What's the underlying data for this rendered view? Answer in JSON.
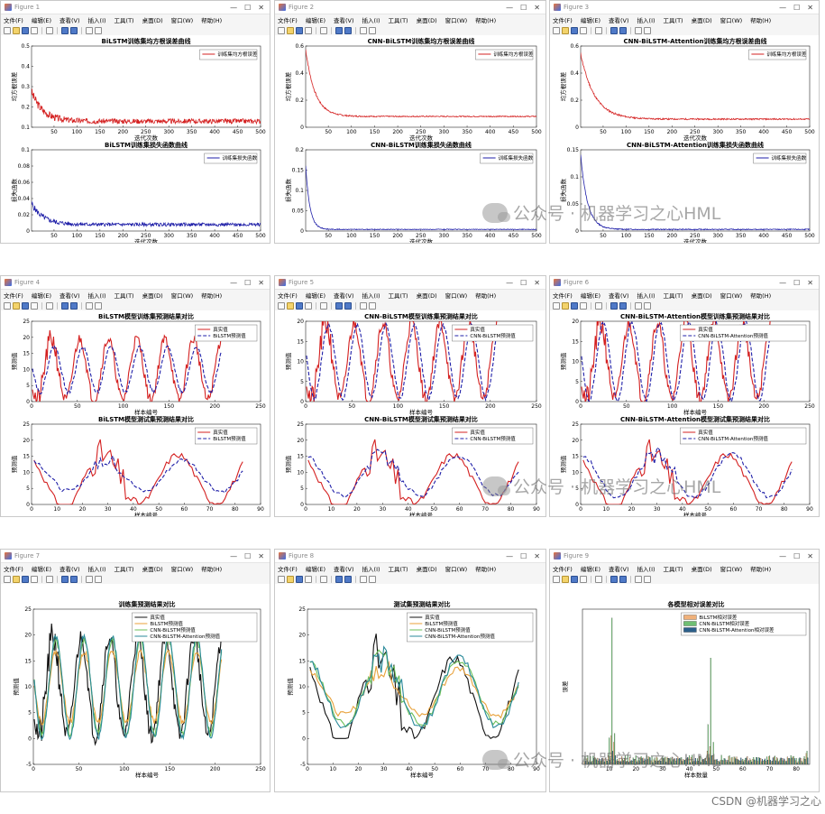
{
  "menu": [
    "文件(F)",
    "编辑(E)",
    "查看(V)",
    "插入(I)",
    "工具(T)",
    "桌面(D)",
    "窗口(W)",
    "帮助(H)"
  ],
  "window_buttons": [
    "—",
    "☐",
    "✕"
  ],
  "figures": [
    {
      "title": "Figure 1",
      "plots": [
        {
          "type": "line",
          "title": "BiLSTM训练集均方根误差曲线",
          "xlabel": "迭代次数",
          "ylabel": "均方根误差",
          "xlim": [
            1,
            500
          ],
          "ylim": [
            0.1,
            0.5
          ],
          "xticks": [
            50,
            100,
            150,
            200,
            250,
            300,
            350,
            400,
            450,
            500
          ],
          "yticks": [
            0.1,
            0.2,
            0.3,
            0.4,
            0.5
          ],
          "series": [
            {
              "name": "训练集均方根误差",
              "color": "#d42020",
              "kind": "rmse",
              "start": 0.28,
              "floor": 0.13,
              "tau": 25,
              "noise": 0.012,
              "seed": 3
            }
          ]
        },
        {
          "type": "line",
          "title": "BiLSTM训练集损失函数曲线",
          "xlabel": "迭代次数",
          "ylabel": "损失函数",
          "xlim": [
            1,
            500
          ],
          "ylim": [
            0,
            0.1
          ],
          "xticks": [
            50,
            100,
            150,
            200,
            250,
            300,
            350,
            400,
            450,
            500
          ],
          "yticks": [
            0,
            0.02,
            0.04,
            0.06,
            0.08,
            0.1
          ],
          "series": [
            {
              "name": "训练集损失函数",
              "color": "#1f1fa8",
              "kind": "rmse",
              "start": 0.035,
              "floor": 0.008,
              "tau": 25,
              "noise": 0.002,
              "seed": 5
            }
          ]
        }
      ]
    },
    {
      "title": "Figure 2",
      "plots": [
        {
          "type": "line",
          "title": "CNN-BiLSTM训练集均方根误差曲线",
          "xlabel": "迭代次数",
          "ylabel": "均方根误差",
          "xlim": [
            1,
            500
          ],
          "ylim": [
            0,
            0.6
          ],
          "xticks": [
            50,
            100,
            150,
            200,
            250,
            300,
            350,
            400,
            450,
            500
          ],
          "yticks": [
            0,
            0.2,
            0.4,
            0.6
          ],
          "series": [
            {
              "name": "训练集均方根误差",
              "color": "#d42020",
              "kind": "rmse",
              "start": 0.6,
              "floor": 0.08,
              "tau": 20,
              "noise": 0.004,
              "seed": 7
            }
          ]
        },
        {
          "type": "line",
          "title": "CNN-BiLSTM训练集损失函数曲线",
          "xlabel": "迭代次数",
          "ylabel": "损失函数",
          "xlim": [
            1,
            500
          ],
          "ylim": [
            0,
            0.2
          ],
          "xticks": [
            50,
            100,
            150,
            200,
            250,
            300,
            350,
            400,
            450,
            500
          ],
          "yticks": [
            0,
            0.05,
            0.1,
            0.15,
            0.2
          ],
          "series": [
            {
              "name": "训练集损失函数",
              "color": "#1f1fa8",
              "kind": "rmse",
              "start": 0.18,
              "floor": 0.004,
              "tau": 9,
              "noise": 0.0008,
              "seed": 9
            }
          ]
        }
      ]
    },
    {
      "title": "Figure 3",
      "plots": [
        {
          "type": "line",
          "title": "CNN-BiLSTM-Attention训练集均方根误差曲线",
          "xlabel": "迭代次数",
          "ylabel": "均方根误差",
          "xlim": [
            1,
            500
          ],
          "ylim": [
            0,
            0.6
          ],
          "xticks": [
            50,
            100,
            150,
            200,
            250,
            300,
            350,
            400,
            450,
            500
          ],
          "yticks": [
            0,
            0.2,
            0.4,
            0.6
          ],
          "series": [
            {
              "name": "训练集均方根误差",
              "color": "#d42020",
              "kind": "rmse",
              "start": 0.56,
              "floor": 0.06,
              "tau": 30,
              "noise": 0.005,
              "seed": 11
            }
          ]
        },
        {
          "type": "line",
          "title": "CNN-BiLSTM-Attention训练集损失函数曲线",
          "xlabel": "迭代次数",
          "ylabel": "损失函数",
          "xlim": [
            1,
            500
          ],
          "ylim": [
            0,
            0.15
          ],
          "xticks": [
            50,
            100,
            150,
            200,
            250,
            300,
            350,
            400,
            450,
            500
          ],
          "yticks": [
            0,
            0.05,
            0.1,
            0.15
          ],
          "series": [
            {
              "name": "训练集损失函数",
              "color": "#1f1fa8",
              "kind": "rmse",
              "start": 0.15,
              "floor": 0.003,
              "tau": 15,
              "noise": 0.0008,
              "seed": 13
            }
          ]
        }
      ]
    },
    {
      "title": "Figure 4",
      "plots": [
        {
          "type": "line",
          "title": "BiLSTM模型训练集预测结果对比",
          "xlabel": "样本编号",
          "ylabel": "预测值",
          "xlim": [
            0,
            250
          ],
          "ylim": [
            0,
            25
          ],
          "xticks": [
            0,
            50,
            100,
            150,
            200,
            250
          ],
          "yticks": [
            0,
            5,
            10,
            15,
            20,
            25
          ],
          "series": [
            {
              "name": "真实值",
              "color": "#d42020",
              "kind": "train_true",
              "seed": 21
            },
            {
              "name": "BiLSTM预测值",
              "color": "#1f1fa8",
              "dash": "4,2",
              "kind": "train_pred",
              "amp": 0.75,
              "seed": 22
            }
          ]
        },
        {
          "type": "line",
          "title": "BiLSTM模型测试集预测结果对比",
          "xlabel": "样本编号",
          "ylabel": "预测值",
          "xlim": [
            0,
            90
          ],
          "ylim": [
            0,
            25
          ],
          "xticks": [
            0,
            10,
            20,
            30,
            40,
            50,
            60,
            70,
            80,
            90
          ],
          "yticks": [
            0,
            5,
            10,
            15,
            20,
            25
          ],
          "series": [
            {
              "name": "真实值",
              "color": "#d42020",
              "kind": "test_true",
              "seed": 31
            },
            {
              "name": "BiLSTM预测值",
              "color": "#1f1fa8",
              "dash": "4,2",
              "kind": "test_pred",
              "amp": 0.7,
              "seed": 32
            }
          ]
        }
      ]
    },
    {
      "title": "Figure 5",
      "plots": [
        {
          "type": "line",
          "title": "CNN-BiLSTM模型训练集预测结果对比",
          "xlabel": "样本编号",
          "ylabel": "预测值",
          "xlim": [
            0,
            250
          ],
          "ylim": [
            0,
            20
          ],
          "xticks": [
            0,
            50,
            100,
            150,
            200,
            250
          ],
          "yticks": [
            0,
            5,
            10,
            15,
            20
          ],
          "series": [
            {
              "name": "真实值",
              "color": "#d42020",
              "kind": "train_true",
              "seed": 21
            },
            {
              "name": "CNN-BiLSTM预测值",
              "color": "#1f1fa8",
              "dash": "4,2",
              "kind": "train_pred",
              "amp": 0.95,
              "seed": 23
            }
          ]
        },
        {
          "type": "line",
          "title": "CNN-BiLSTM模型测试集预测结果对比",
          "xlabel": "样本编号",
          "ylabel": "预测值",
          "xlim": [
            0,
            90
          ],
          "ylim": [
            0,
            25
          ],
          "xticks": [
            0,
            10,
            20,
            30,
            40,
            50,
            60,
            70,
            80,
            90
          ],
          "yticks": [
            0,
            5,
            10,
            15,
            20,
            25
          ],
          "series": [
            {
              "name": "真实值",
              "color": "#d42020",
              "kind": "test_true",
              "seed": 31
            },
            {
              "name": "CNN-BiLSTM预测值",
              "color": "#1f1fa8",
              "dash": "4,2",
              "kind": "test_pred",
              "amp": 0.9,
              "seed": 33
            }
          ]
        }
      ]
    },
    {
      "title": "Figure 6",
      "plots": [
        {
          "type": "line",
          "title": "CNN-BiLSTM-Attention模型训练集预测结果对比",
          "xlabel": "样本编号",
          "ylabel": "预测值",
          "xlim": [
            0,
            250
          ],
          "ylim": [
            0,
            20
          ],
          "xticks": [
            0,
            50,
            100,
            150,
            200,
            250
          ],
          "yticks": [
            0,
            5,
            10,
            15,
            20
          ],
          "series": [
            {
              "name": "真实值",
              "color": "#d42020",
              "kind": "train_true",
              "seed": 21
            },
            {
              "name": "CNN-BiLSTM-Attention预测值",
              "color": "#1f1fa8",
              "dash": "4,2",
              "kind": "train_pred",
              "amp": 1.0,
              "seed": 24
            }
          ]
        },
        {
          "type": "line",
          "title": "CNN-BiLSTM-Attention模型测试集预测结果对比",
          "xlabel": "样本编号",
          "ylabel": "预测值",
          "xlim": [
            0,
            90
          ],
          "ylim": [
            0,
            25
          ],
          "xticks": [
            0,
            10,
            20,
            30,
            40,
            50,
            60,
            70,
            80,
            90
          ],
          "yticks": [
            0,
            5,
            10,
            15,
            20,
            25
          ],
          "series": [
            {
              "name": "真实值",
              "color": "#d42020",
              "kind": "test_true",
              "seed": 31
            },
            {
              "name": "CNN-BiLSTM-Attention预测值",
              "color": "#1f1fa8",
              "dash": "4,2",
              "kind": "test_pred",
              "amp": 0.95,
              "seed": 34
            }
          ]
        }
      ]
    },
    {
      "title": "Figure 7",
      "plots": [
        {
          "type": "line",
          "title": "训练集预测结果对比",
          "xlabel": "样本编号",
          "ylabel": "预测值",
          "xlim": [
            0,
            250
          ],
          "ylim": [
            -5,
            25
          ],
          "xticks": [
            0,
            50,
            100,
            150,
            200,
            250
          ],
          "yticks": [
            -5,
            0,
            5,
            10,
            15,
            20,
            25
          ],
          "series": [
            {
              "name": "真实值",
              "color": "#111111",
              "kind": "train_true",
              "seed": 21
            },
            {
              "name": "BiLSTM预测值",
              "color": "#e8a13a",
              "kind": "train_pred",
              "amp": 0.72,
              "seed": 22
            },
            {
              "name": "CNN-BiLSTM预测值",
              "color": "#6bbf59",
              "kind": "train_pred",
              "amp": 0.95,
              "seed": 23
            },
            {
              "name": "CNN-BiLSTM-Attention预测值",
              "color": "#2a8a9a",
              "kind": "train_pred",
              "amp": 1.02,
              "seed": 24
            }
          ]
        }
      ]
    },
    {
      "title": "Figure 8",
      "plots": [
        {
          "type": "line",
          "title": "测试集预测结果对比",
          "xlabel": "样本编号",
          "ylabel": "预测值",
          "xlim": [
            0,
            90
          ],
          "ylim": [
            -5,
            25
          ],
          "xticks": [
            0,
            10,
            20,
            30,
            40,
            50,
            60,
            70,
            80,
            90
          ],
          "yticks": [
            -5,
            0,
            5,
            10,
            15,
            20,
            25
          ],
          "series": [
            {
              "name": "真实值",
              "color": "#111111",
              "kind": "test_true",
              "seed": 31
            },
            {
              "name": "BiLSTM预测值",
              "color": "#e8a13a",
              "kind": "test_pred",
              "amp": 0.65,
              "seed": 32
            },
            {
              "name": "CNN-BiLSTM预测值",
              "color": "#6bbf59",
              "kind": "test_pred",
              "amp": 0.9,
              "seed": 33
            },
            {
              "name": "CNN-BiLSTM-Attention预测值",
              "color": "#2a8a9a",
              "kind": "test_pred",
              "amp": 0.95,
              "seed": 34
            }
          ]
        }
      ]
    },
    {
      "title": "Figure 9",
      "plots": [
        {
          "type": "bar",
          "title": "各模型相对误差对比",
          "xlabel": "样本数量",
          "ylabel": "误差",
          "xlim": [
            0,
            85
          ],
          "ylim": [
            0,
            35
          ],
          "xticks": [
            10,
            20,
            30,
            40,
            50,
            60,
            70,
            80
          ],
          "yticks": [],
          "series": [
            {
              "name": "BiLSTM相对误差",
              "color": "#f0b17a"
            },
            {
              "name": "CNN-BiLSTM相对误差",
              "color": "#6fbf73"
            },
            {
              "name": "CNN-BiLSTM-Attention相对误差",
              "color": "#2b5f8a"
            }
          ],
          "spikes": [
            {
              "x": 11,
              "v": [
                6.5,
                33,
                3
              ]
            },
            {
              "x": 12,
              "v": [
                5,
                7,
                2
              ]
            },
            {
              "x": 10,
              "v": [
                2,
                6,
                1
              ]
            },
            {
              "x": 48,
              "v": [
                4,
                24,
                2
              ]
            },
            {
              "x": 47,
              "v": [
                3,
                9,
                1.5
              ]
            },
            {
              "x": 49,
              "v": [
                2,
                5,
                1
              ]
            },
            {
              "x": 84,
              "v": [
                2.5,
                3,
                1.5
              ]
            }
          ]
        }
      ]
    }
  ],
  "chart_data": [
    {
      "type": "line",
      "title": "BiLSTM训练集均方根误差曲线",
      "x_range": [
        1,
        500
      ],
      "ylim": [
        0.1,
        0.5
      ],
      "series": [
        {
          "name": "训练集均方根误差",
          "start": 0.28,
          "end": 0.13
        }
      ]
    },
    {
      "type": "line",
      "title": "BiLSTM训练集损失函数曲线",
      "x_range": [
        1,
        500
      ],
      "ylim": [
        0,
        0.1
      ],
      "series": [
        {
          "name": "训练集损失函数",
          "start": 0.035,
          "end": 0.008
        }
      ]
    },
    {
      "type": "line",
      "title": "CNN-BiLSTM训练集均方根误差曲线",
      "x_range": [
        1,
        500
      ],
      "ylim": [
        0,
        0.6
      ],
      "series": [
        {
          "name": "训练集均方根误差",
          "start": 0.6,
          "end": 0.08
        }
      ]
    },
    {
      "type": "line",
      "title": "CNN-BiLSTM训练集损失函数曲线",
      "x_range": [
        1,
        500
      ],
      "ylim": [
        0,
        0.2
      ],
      "series": [
        {
          "name": "训练集损失函数",
          "start": 0.18,
          "end": 0.004
        }
      ]
    },
    {
      "type": "line",
      "title": "CNN-BiLSTM-Attention训练集均方根误差曲线",
      "x_range": [
        1,
        500
      ],
      "ylim": [
        0,
        0.6
      ],
      "series": [
        {
          "name": "训练集均方根误差",
          "start": 0.56,
          "end": 0.06
        }
      ]
    },
    {
      "type": "line",
      "title": "CNN-BiLSTM-Attention训练集损失函数曲线",
      "x_range": [
        1,
        500
      ],
      "ylim": [
        0,
        0.15
      ],
      "series": [
        {
          "name": "训练集损失函数",
          "start": 0.15,
          "end": 0.003
        }
      ]
    },
    {
      "type": "line",
      "title": "训练集预测结果对比",
      "samples": 207,
      "ylim": [
        -5,
        25
      ],
      "note_values_range": [
        0,
        21
      ],
      "series": [
        "真实值",
        "BiLSTM预测值",
        "CNN-BiLSTM预测值",
        "CNN-BiLSTM-Attention预测值"
      ]
    },
    {
      "type": "line",
      "title": "测试集预测结果对比",
      "samples": 83,
      "ylim": [
        -5,
        25
      ],
      "series": [
        "真实值",
        "BiLSTM预测值",
        "CNN-BiLSTM预测值",
        "CNN-BiLSTM-Attention预测值"
      ]
    },
    {
      "type": "bar",
      "title": "各模型相对误差对比",
      "xlabel": "样本数量",
      "ylabel": "误差",
      "peaks": [
        {
          "x": 11,
          "value": 33
        },
        {
          "x": 48,
          "value": 24
        }
      ]
    }
  ],
  "watermark": "公众号 · 机器学习之心HML",
  "credit": "CSDN @机器学习之心"
}
